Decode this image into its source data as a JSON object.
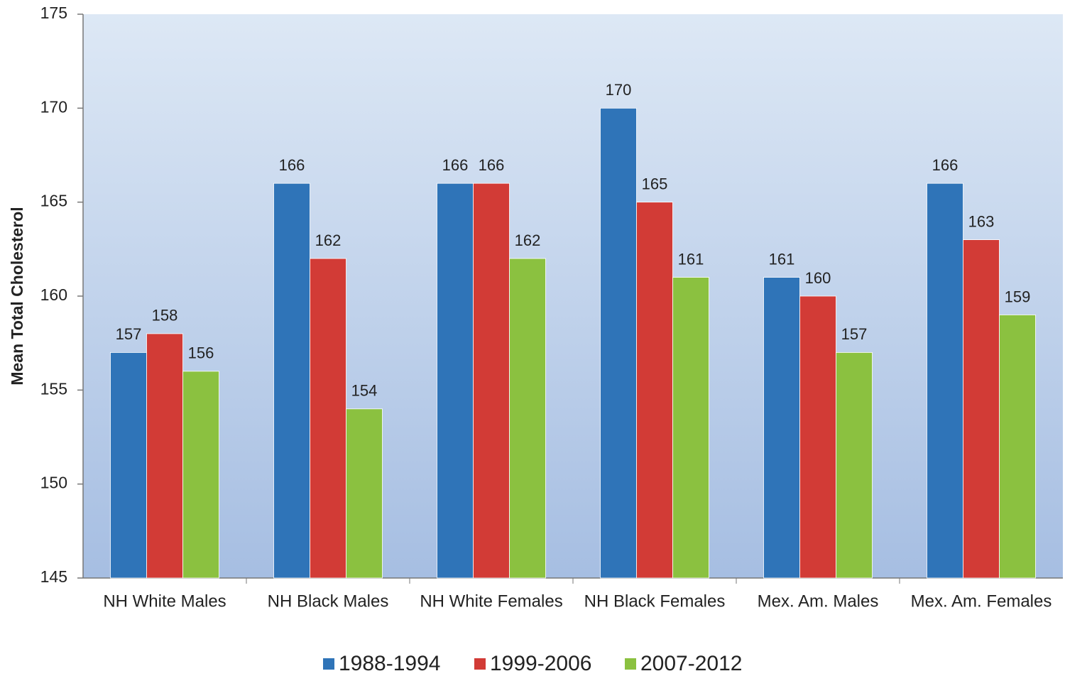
{
  "chart_data": {
    "type": "bar",
    "y_label": "Mean Total Cholesterol",
    "categories": [
      "NH White Males",
      "NH Black Males",
      "NH White Females",
      "NH Black Females",
      "Mex. Am. Males",
      "Mex. Am. Females"
    ],
    "series": [
      {
        "name": "1988-1994",
        "color": "#2f74b8",
        "values": [
          157,
          166,
          166,
          170,
          161,
          166
        ]
      },
      {
        "name": "1999-2006",
        "color": "#d23b36",
        "values": [
          158,
          162,
          166,
          165,
          160,
          163
        ]
      },
      {
        "name": "2007-2012",
        "color": "#8bc140",
        "values": [
          156,
          154,
          162,
          161,
          157,
          159
        ]
      }
    ],
    "ylim": [
      145,
      175
    ],
    "yticks": [
      145,
      150,
      155,
      160,
      165,
      170,
      175
    ],
    "grid": false
  }
}
